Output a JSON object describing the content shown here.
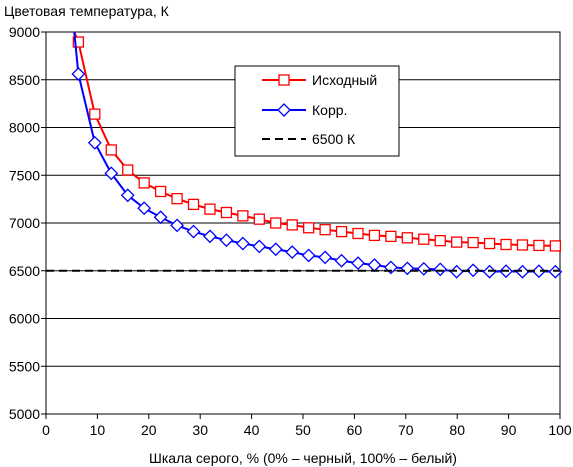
{
  "chart_data": {
    "type": "line",
    "title": "",
    "ylabel": "Цветовая температура, К",
    "xlabel": "Шкала серого, % (0% – черный, 100% – белый)",
    "xlim": [
      0,
      100
    ],
    "ylim": [
      5000,
      9000
    ],
    "x_ticks": [
      0,
      10,
      20,
      30,
      40,
      50,
      60,
      70,
      80,
      90,
      100
    ],
    "y_ticks": [
      5000,
      5500,
      6000,
      6500,
      7000,
      7500,
      8000,
      8500,
      9000
    ],
    "grid": "horizontal",
    "legend_position": "top-right",
    "series": [
      {
        "name": "Исходный",
        "color": "#ff0000",
        "marker": "square",
        "x": [
          5.5,
          6.3,
          9.5,
          12.7,
          15.9,
          19.1,
          22.3,
          25.5,
          28.7,
          31.9,
          35.1,
          38.3,
          41.5,
          44.7,
          47.9,
          51.1,
          54.3,
          57.5,
          60.7,
          63.9,
          67.1,
          70.3,
          73.5,
          76.7,
          79.9,
          83.1,
          86.3,
          89.5,
          92.7,
          95.9,
          99.1
        ],
        "y": [
          9000,
          8895,
          8140,
          7765,
          7555,
          7420,
          7330,
          7255,
          7195,
          7145,
          7110,
          7075,
          7040,
          7000,
          6980,
          6950,
          6930,
          6910,
          6890,
          6870,
          6860,
          6845,
          6830,
          6815,
          6800,
          6795,
          6785,
          6775,
          6770,
          6765,
          6760
        ]
      },
      {
        "name": "Корр.",
        "color": "#0000ff",
        "marker": "diamond",
        "x": [
          5.5,
          6.3,
          9.5,
          12.7,
          15.9,
          19.1,
          22.3,
          25.5,
          28.7,
          31.9,
          35.1,
          38.3,
          41.5,
          44.7,
          47.9,
          51.1,
          54.3,
          57.5,
          60.7,
          63.9,
          67.1,
          70.3,
          73.5,
          76.7,
          79.9,
          83.1,
          86.3,
          89.5,
          92.7,
          95.9,
          99.1
        ],
        "y": [
          9000,
          8560,
          7840,
          7520,
          7290,
          7155,
          7060,
          6975,
          6910,
          6860,
          6820,
          6785,
          6755,
          6725,
          6695,
          6660,
          6640,
          6605,
          6580,
          6560,
          6535,
          6525,
          6520,
          6515,
          6490,
          6505,
          6490,
          6495,
          6490,
          6495,
          6490
        ]
      },
      {
        "name": "6500 К",
        "color": "#000000",
        "style": "dashed",
        "x": [
          0,
          100
        ],
        "y": [
          6500,
          6500
        ]
      }
    ]
  }
}
